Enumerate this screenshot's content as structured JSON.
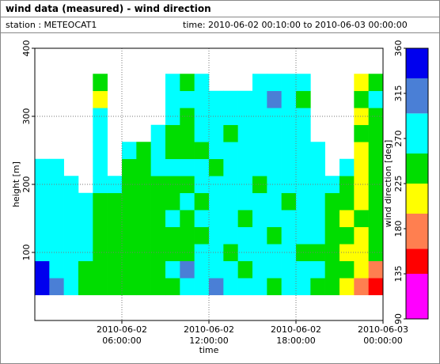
{
  "header": {
    "title": "wind data (measured) - wind direction",
    "station": "station : METEOCAT1",
    "period": "time: 2010-06-02 00:10:00 to 2010-06-03 00:00:00"
  },
  "chart_data": {
    "type": "heatmap",
    "x_label": "time",
    "y_label": "height [m]",
    "colorbar_label": "wind direction [deg]",
    "xlim": [
      "2010-06-02 00:00:00",
      "2010-06-03 00:00:00"
    ],
    "xticks": [
      "2010-06-02 06:00:00",
      "2010-06-02 12:00:00",
      "2010-06-02 18:00:00",
      "2010-06-03 00:00:00"
    ],
    "ylim": [
      0,
      400
    ],
    "yticks": [
      100,
      200,
      300,
      400
    ],
    "clim": [
      90,
      360
    ],
    "cticks": [
      90,
      135,
      180,
      225,
      270,
      315,
      360
    ],
    "colorscale": {
      "bounds": [
        90,
        135,
        160,
        195,
        225,
        255,
        295,
        330,
        360
      ],
      "colors": [
        "#ff00ff",
        "#ff0000",
        "#ff7f50",
        "#ffff00",
        "#00dd00",
        "#00ffff",
        "#4a7fd6",
        "#0000ee"
      ]
    },
    "grid": true,
    "x": [
      "2010-06-02 00:30:00",
      "2010-06-02 01:30:00",
      "2010-06-02 02:30:00",
      "2010-06-02 03:30:00",
      "2010-06-02 04:30:00",
      "2010-06-02 05:30:00",
      "2010-06-02 06:30:00",
      "2010-06-02 07:30:00",
      "2010-06-02 08:30:00",
      "2010-06-02 09:30:00",
      "2010-06-02 10:30:00",
      "2010-06-02 11:30:00",
      "2010-06-02 12:30:00",
      "2010-06-02 13:30:00",
      "2010-06-02 14:30:00",
      "2010-06-02 15:30:00",
      "2010-06-02 16:30:00",
      "2010-06-02 17:30:00",
      "2010-06-02 18:30:00",
      "2010-06-02 19:30:00",
      "2010-06-02 20:30:00",
      "2010-06-02 21:30:00",
      "2010-06-02 22:30:00",
      "2010-06-02 23:30:00"
    ],
    "y": [
      50,
      75,
      100,
      125,
      150,
      175,
      200,
      225,
      250,
      275,
      300,
      325,
      350
    ],
    "values": [
      [
        340,
        310,
        270,
        240,
        240,
        240,
        240,
        240,
        240,
        240,
        270,
        270,
        310,
        270,
        270,
        270,
        240,
        270,
        270,
        240,
        240,
        210,
        175,
        150
      ],
      [
        340,
        270,
        270,
        240,
        240,
        240,
        240,
        240,
        240,
        270,
        310,
        270,
        270,
        270,
        240,
        270,
        270,
        270,
        270,
        270,
        240,
        240,
        210,
        175
      ],
      [
        270,
        270,
        270,
        270,
        240,
        240,
        240,
        240,
        240,
        240,
        240,
        270,
        270,
        240,
        270,
        270,
        270,
        270,
        240,
        240,
        240,
        210,
        210,
        240
      ],
      [
        270,
        270,
        270,
        270,
        240,
        240,
        240,
        240,
        240,
        240,
        240,
        240,
        270,
        270,
        270,
        270,
        240,
        270,
        270,
        270,
        240,
        240,
        210,
        240
      ],
      [
        270,
        270,
        270,
        270,
        240,
        240,
        240,
        240,
        240,
        270,
        240,
        270,
        270,
        270,
        240,
        270,
        270,
        270,
        270,
        270,
        240,
        210,
        240,
        240
      ],
      [
        270,
        270,
        270,
        270,
        240,
        240,
        240,
        240,
        240,
        240,
        270,
        240,
        270,
        270,
        270,
        270,
        270,
        240,
        270,
        270,
        240,
        240,
        210,
        240
      ],
      [
        270,
        270,
        270,
        null,
        270,
        270,
        240,
        240,
        240,
        240,
        240,
        270,
        270,
        270,
        270,
        240,
        270,
        270,
        270,
        270,
        270,
        240,
        210,
        240
      ],
      [
        270,
        270,
        null,
        null,
        270,
        null,
        240,
        240,
        270,
        270,
        270,
        270,
        240,
        270,
        270,
        270,
        270,
        270,
        270,
        270,
        null,
        270,
        210,
        240
      ],
      [
        null,
        null,
        null,
        null,
        270,
        null,
        270,
        240,
        270,
        240,
        240,
        240,
        270,
        270,
        270,
        270,
        270,
        270,
        270,
        270,
        null,
        null,
        210,
        240
      ],
      [
        null,
        null,
        null,
        null,
        270,
        null,
        null,
        null,
        270,
        240,
        240,
        270,
        270,
        240,
        270,
        270,
        270,
        270,
        270,
        null,
        null,
        null,
        240,
        240
      ],
      [
        null,
        null,
        null,
        null,
        270,
        null,
        null,
        null,
        null,
        270,
        240,
        270,
        270,
        270,
        270,
        270,
        270,
        270,
        270,
        null,
        null,
        null,
        210,
        240
      ],
      [
        null,
        null,
        null,
        null,
        210,
        null,
        null,
        null,
        null,
        270,
        270,
        270,
        270,
        270,
        270,
        270,
        310,
        270,
        240,
        null,
        null,
        null,
        240,
        270
      ],
      [
        null,
        null,
        null,
        null,
        240,
        null,
        null,
        null,
        null,
        270,
        240,
        270,
        null,
        null,
        null,
        270,
        270,
        270,
        270,
        null,
        null,
        null,
        210,
        240
      ]
    ]
  }
}
